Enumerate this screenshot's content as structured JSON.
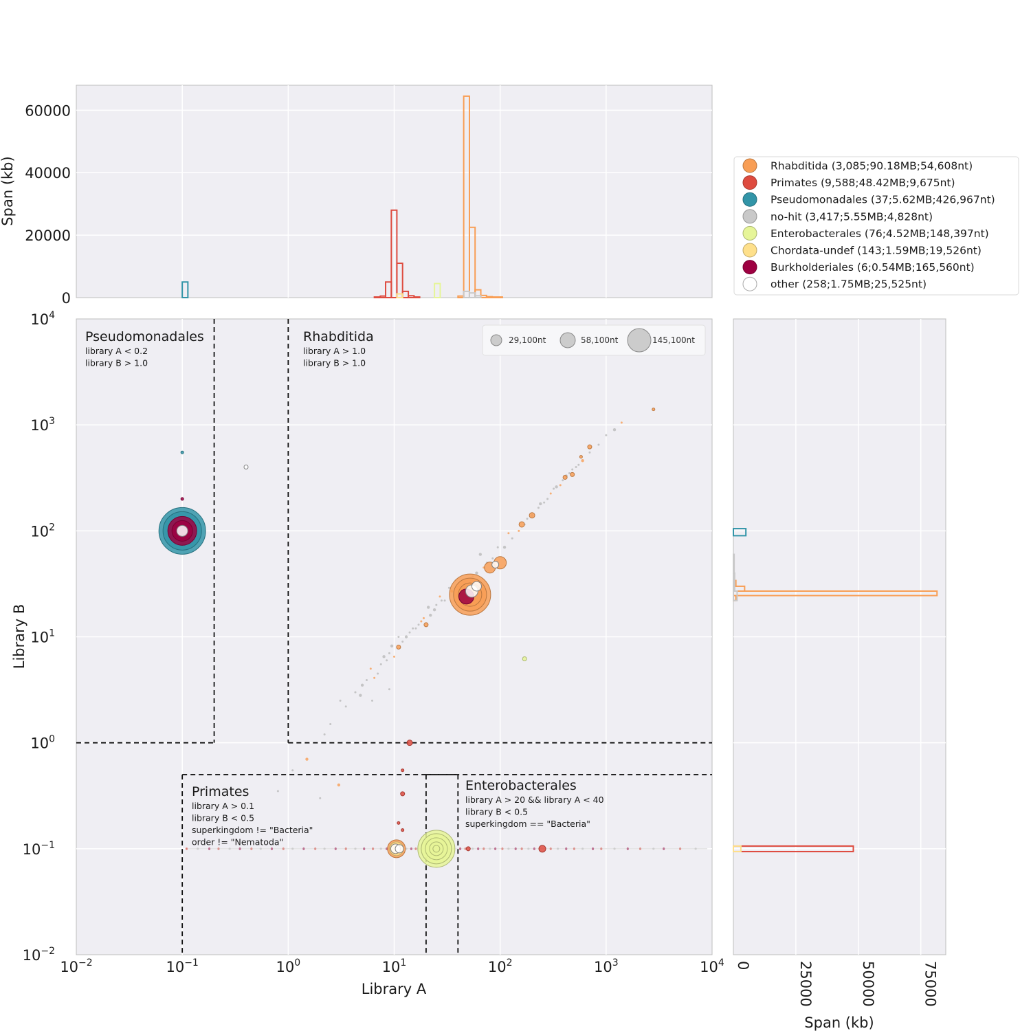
{
  "chart_data": {
    "type": "scatter",
    "xlabel": "Library A",
    "ylabel": "Library B",
    "x_scale": "log",
    "y_scale": "log",
    "xlim": [
      0.01,
      10000
    ],
    "ylim": [
      0.01,
      10000
    ],
    "x_ticks": [
      {
        "base": "10",
        "exp": "−2"
      },
      {
        "base": "10",
        "exp": "−1"
      },
      {
        "base": "10",
        "exp": "0"
      },
      {
        "base": "10",
        "exp": "1"
      },
      {
        "base": "10",
        "exp": "2"
      },
      {
        "base": "10",
        "exp": "3"
      },
      {
        "base": "10",
        "exp": "4"
      }
    ],
    "y_ticks": [
      {
        "base": "10",
        "exp": "−2"
      },
      {
        "base": "10",
        "exp": "−1"
      },
      {
        "base": "10",
        "exp": "0"
      },
      {
        "base": "10",
        "exp": "1"
      },
      {
        "base": "10",
        "exp": "2"
      },
      {
        "base": "10",
        "exp": "3"
      },
      {
        "base": "10",
        "exp": "4"
      }
    ],
    "grid": true,
    "legend_position": "right of top histogram",
    "series": [
      {
        "name": "Rhabditida (3,085;90.18MB;54,608nt)",
        "color": "#f89e55"
      },
      {
        "name": "Primates (9,588;48.42MB;9,675nt)",
        "color": "#de4b3f"
      },
      {
        "name": "Pseudomonadales (37;5.62MB;426,967nt)",
        "color": "#3295a8"
      },
      {
        "name": "no-hit (3,417;5.55MB;4,828nt)",
        "color": "#c9c9c9"
      },
      {
        "name": "Enterobacterales (76;4.52MB;148,397nt)",
        "color": "#e6f598"
      },
      {
        "name": "Chordata-undef (143;1.59MB;19,526nt)",
        "color": "#fee08b"
      },
      {
        "name": "Burkholderiales (6;0.54MB;165,560nt)",
        "color": "#9e0142"
      },
      {
        "name": "other (258;1.75MB;25,525nt)",
        "color": "#ffffff"
      }
    ],
    "size_legend": [
      "29,100nt",
      "58,100nt",
      "145,100nt"
    ],
    "regions": [
      {
        "title": "Pseudomonadales",
        "rules": [
          "library A < 0.2",
          "library B > 1.0"
        ],
        "x_range": [
          0.01,
          0.2
        ],
        "y_range": [
          1.0,
          10000
        ]
      },
      {
        "title": "Rhabditida",
        "rules": [
          "library A > 1.0",
          "library B > 1.0"
        ],
        "x_range": [
          1.0,
          10000
        ],
        "y_range": [
          1.0,
          10000
        ]
      },
      {
        "title": "Primates",
        "rules": [
          "library A > 0.1",
          "library B < 0.5",
          "superkingdom != \"Bacteria\"",
          "order != \"Nematoda\""
        ],
        "x_range": [
          0.1,
          10000
        ],
        "y_range": [
          0.01,
          0.5
        ]
      },
      {
        "title": "Enterobacterales",
        "rules": [
          "library A > 20  && library A < 40",
          "library B < 0.5",
          "superkingdom == \"Bacteria\""
        ],
        "x_range": [
          20,
          40
        ],
        "y_range": [
          0.01,
          0.5
        ]
      }
    ],
    "bubbles": [
      {
        "series": "Pseudomonadales",
        "x": 0.1,
        "y": 100,
        "r": 34
      },
      {
        "series": "Pseudomonadales",
        "x": 0.1,
        "y": 100,
        "r": 28
      },
      {
        "series": "Burkholderiales",
        "x": 0.1,
        "y": 100,
        "r": 21
      },
      {
        "series": "Burkholderiales",
        "x": 0.1,
        "y": 100,
        "r": 15
      },
      {
        "series": "other",
        "x": 0.1,
        "y": 100,
        "r": 8
      },
      {
        "series": "Pseudomonadales",
        "x": 0.1,
        "y": 550,
        "r": 2
      },
      {
        "series": "Burkholderiales",
        "x": 0.1,
        "y": 200,
        "r": 2
      },
      {
        "series": "other",
        "x": 0.4,
        "y": 400,
        "r": 3
      },
      {
        "series": "Rhabditida",
        "x": 52,
        "y": 25,
        "r": 30
      },
      {
        "series": "Rhabditida",
        "x": 52,
        "y": 25,
        "r": 24
      },
      {
        "series": "Rhabditida",
        "x": 52,
        "y": 25,
        "r": 17
      },
      {
        "series": "Burkholderiales",
        "x": 48,
        "y": 24,
        "r": 11
      },
      {
        "series": "other",
        "x": 54,
        "y": 27,
        "r": 9
      },
      {
        "series": "other",
        "x": 60,
        "y": 30,
        "r": 7
      },
      {
        "series": "Rhabditida",
        "x": 80,
        "y": 45,
        "r": 8
      },
      {
        "series": "Rhabditida",
        "x": 100,
        "y": 50,
        "r": 9
      },
      {
        "series": "other",
        "x": 90,
        "y": 48,
        "r": 5
      },
      {
        "series": "Rhabditida",
        "x": 160,
        "y": 115,
        "r": 4
      },
      {
        "series": "Rhabditida",
        "x": 200,
        "y": 140,
        "r": 4
      },
      {
        "series": "Rhabditida",
        "x": 410,
        "y": 320,
        "r": 3
      },
      {
        "series": "Rhabditida",
        "x": 480,
        "y": 340,
        "r": 3
      },
      {
        "series": "Rhabditida",
        "x": 580,
        "y": 500,
        "r": 2
      },
      {
        "series": "Rhabditida",
        "x": 700,
        "y": 620,
        "r": 3
      },
      {
        "series": "Rhabditida",
        "x": 2800,
        "y": 1400,
        "r": 2
      },
      {
        "series": "Rhabditida",
        "x": 20,
        "y": 13,
        "r": 3
      },
      {
        "series": "Rhabditida",
        "x": 11,
        "y": 8,
        "r": 3
      },
      {
        "series": "Enterobacterales",
        "x": 170,
        "y": 6.2,
        "r": 3
      },
      {
        "series": "Primates",
        "x": 14,
        "y": 1.0,
        "r": 4
      },
      {
        "series": "Primates",
        "x": 12,
        "y": 0.55,
        "r": 2
      },
      {
        "series": "Primates",
        "x": 12,
        "y": 0.33,
        "r": 3
      },
      {
        "series": "Primates",
        "x": 11,
        "y": 0.175,
        "r": 2
      },
      {
        "series": "Primates",
        "x": 12,
        "y": 0.15,
        "r": 2
      },
      {
        "series": "Primates",
        "x": 250,
        "y": 0.1,
        "r": 5
      },
      {
        "series": "Primates",
        "x": 50,
        "y": 0.1,
        "r": 3
      },
      {
        "series": "Enterobacterales",
        "x": 25,
        "y": 0.1,
        "r": 27
      },
      {
        "series": "Enterobacterales",
        "x": 25,
        "y": 0.1,
        "r": 22
      },
      {
        "series": "Enterobacterales",
        "x": 25,
        "y": 0.1,
        "r": 16
      },
      {
        "series": "Enterobacterales",
        "x": 25,
        "y": 0.1,
        "r": 10
      },
      {
        "series": "Enterobacterales",
        "x": 25,
        "y": 0.1,
        "r": 5
      },
      {
        "series": "Rhabditida",
        "x": 10.5,
        "y": 0.1,
        "r": 13
      },
      {
        "series": "Chordata-undef",
        "x": 10.5,
        "y": 0.1,
        "r": 10
      },
      {
        "series": "other",
        "x": 10.3,
        "y": 0.1,
        "r": 7
      },
      {
        "series": "other",
        "x": 11.2,
        "y": 0.1,
        "r": 6
      }
    ],
    "scatter_points": [
      [
        1.5,
        0.7
      ],
      [
        2.5,
        1.5
      ],
      [
        3.5,
        2.2
      ],
      [
        4.3,
        3
      ],
      [
        5,
        3.5
      ],
      [
        6,
        5
      ],
      [
        7,
        4.5
      ],
      [
        7.5,
        5.5
      ],
      [
        8,
        6.5
      ],
      [
        9,
        7
      ],
      [
        10,
        6.5
      ],
      [
        12,
        9
      ],
      [
        13,
        10
      ],
      [
        15,
        12
      ],
      [
        17,
        13
      ],
      [
        19,
        15
      ],
      [
        22,
        16
      ],
      [
        25,
        20
      ],
      [
        28,
        22
      ],
      [
        30,
        22
      ],
      [
        35,
        27
      ],
      [
        40,
        30
      ],
      [
        45,
        33
      ],
      [
        55,
        37
      ],
      [
        60,
        40
      ],
      [
        70,
        45
      ],
      [
        75,
        50
      ],
      [
        85,
        55
      ],
      [
        110,
        70
      ],
      [
        130,
        85
      ],
      [
        150,
        100
      ],
      [
        170,
        115
      ],
      [
        200,
        140
      ],
      [
        230,
        165
      ],
      [
        260,
        185
      ],
      [
        300,
        225
      ],
      [
        340,
        260
      ],
      [
        390,
        300
      ],
      [
        450,
        350
      ],
      [
        520,
        400
      ],
      [
        600,
        460
      ],
      [
        700,
        550
      ],
      [
        850,
        650
      ],
      [
        1000,
        800
      ],
      [
        1200,
        900
      ],
      [
        1400,
        1050
      ],
      [
        2.2,
        1.2
      ],
      [
        3.1,
        2.5
      ],
      [
        4.8,
        2.8
      ],
      [
        5.5,
        3.9
      ],
      [
        6.5,
        4.1
      ],
      [
        8.5,
        6
      ],
      [
        9.5,
        8.2
      ],
      [
        11,
        10
      ],
      [
        14,
        11
      ],
      [
        18,
        14
      ],
      [
        24,
        18
      ],
      [
        0.8,
        0.35
      ],
      [
        1.1,
        0.55
      ],
      [
        2,
        0.3
      ],
      [
        3,
        0.4
      ],
      [
        9,
        3.2
      ],
      [
        6.2,
        2.5
      ],
      [
        16,
        12
      ],
      [
        21,
        19
      ],
      [
        27,
        24
      ],
      [
        33,
        29
      ],
      [
        38,
        34
      ],
      [
        65,
        60
      ],
      [
        95,
        70
      ],
      [
        120,
        95
      ],
      [
        180,
        130
      ],
      [
        240,
        180
      ],
      [
        280,
        200
      ],
      [
        320,
        250
      ],
      [
        370,
        270
      ],
      [
        420,
        330
      ],
      [
        480,
        380
      ],
      [
        550,
        420
      ]
    ],
    "baseline_points": [
      0.11,
      0.14,
      0.18,
      0.22,
      0.28,
      0.35,
      0.45,
      0.55,
      0.7,
      0.9,
      1.1,
      1.4,
      1.8,
      2.2,
      2.8,
      3.5,
      4.3,
      5.2,
      6.3,
      7.5,
      8.5,
      9.3,
      13,
      14.5,
      16,
      18,
      30,
      33,
      36,
      42,
      47,
      55,
      62,
      70,
      80,
      90,
      105,
      120,
      140,
      160,
      185,
      210,
      300,
      350,
      420,
      500,
      600,
      750,
      900,
      1200,
      1600,
      2100,
      2800,
      3500,
      5000,
      7000
    ],
    "top_histogram": {
      "ylabel": "Span (kb)",
      "ylim": [
        0,
        68000
      ],
      "y_ticks": [
        "0",
        "20000",
        "40000",
        "60000"
      ],
      "series": [
        {
          "series": "Pseudomonadales",
          "bins": [
            [
              0.1,
              0.113,
              5000
            ]
          ]
        },
        {
          "series": "Primates",
          "bins": [
            [
              6.5,
              7.4,
              200
            ],
            [
              7.4,
              8.3,
              500
            ],
            [
              8.3,
              9.4,
              5000
            ],
            [
              9.4,
              10.6,
              28000
            ],
            [
              10.6,
              12,
              11000
            ],
            [
              12,
              13.6,
              2000
            ],
            [
              13.6,
              15.4,
              600
            ],
            [
              15.4,
              17.4,
              200
            ]
          ]
        },
        {
          "series": "Enterobacterales",
          "bins": [
            [
              24,
              27.2,
              4500
            ]
          ]
        },
        {
          "series": "Chordata-undef",
          "bins": [
            [
              10.6,
              12,
              1200
            ]
          ]
        },
        {
          "series": "Rhabditida",
          "bins": [
            [
              40,
              45.3,
              500
            ],
            [
              45.3,
              51.3,
              64500
            ],
            [
              51.3,
              58,
              22500
            ],
            [
              58,
              65.7,
              2500
            ],
            [
              65.7,
              74.4,
              700
            ],
            [
              74.4,
              84.2,
              300
            ],
            [
              84.2,
              105,
              200
            ]
          ]
        },
        {
          "series": "no-hit",
          "bins": [
            [
              45.3,
              51.3,
              2000
            ],
            [
              51.3,
              58,
              1500
            ],
            [
              58,
              65.7,
              600
            ]
          ]
        }
      ]
    },
    "right_histogram": {
      "xlabel": "Span (kb)",
      "xlim": [
        0,
        85000
      ],
      "x_ticks": [
        "0",
        "25000",
        "50000",
        "75000"
      ],
      "series": [
        {
          "series": "Pseudomonadales",
          "bins": [
            [
              90,
              105,
              5000
            ]
          ]
        },
        {
          "series": "Rhabditida",
          "bins": [
            [
              22,
              24.5,
              1000
            ],
            [
              24.5,
              27,
              81500
            ],
            [
              27,
              30,
              4500
            ],
            [
              30,
              34,
              1000
            ]
          ]
        },
        {
          "series": "no-hit",
          "bins": [
            [
              22,
              27,
              1500
            ],
            [
              27,
              40,
              500
            ],
            [
              40,
              60,
              300
            ]
          ]
        },
        {
          "series": "Primates",
          "bins": [
            [
              0.094,
              0.106,
              48000
            ]
          ]
        },
        {
          "series": "Chordata-undef",
          "bins": [
            [
              0.094,
              0.106,
              3000
            ]
          ]
        }
      ]
    }
  }
}
